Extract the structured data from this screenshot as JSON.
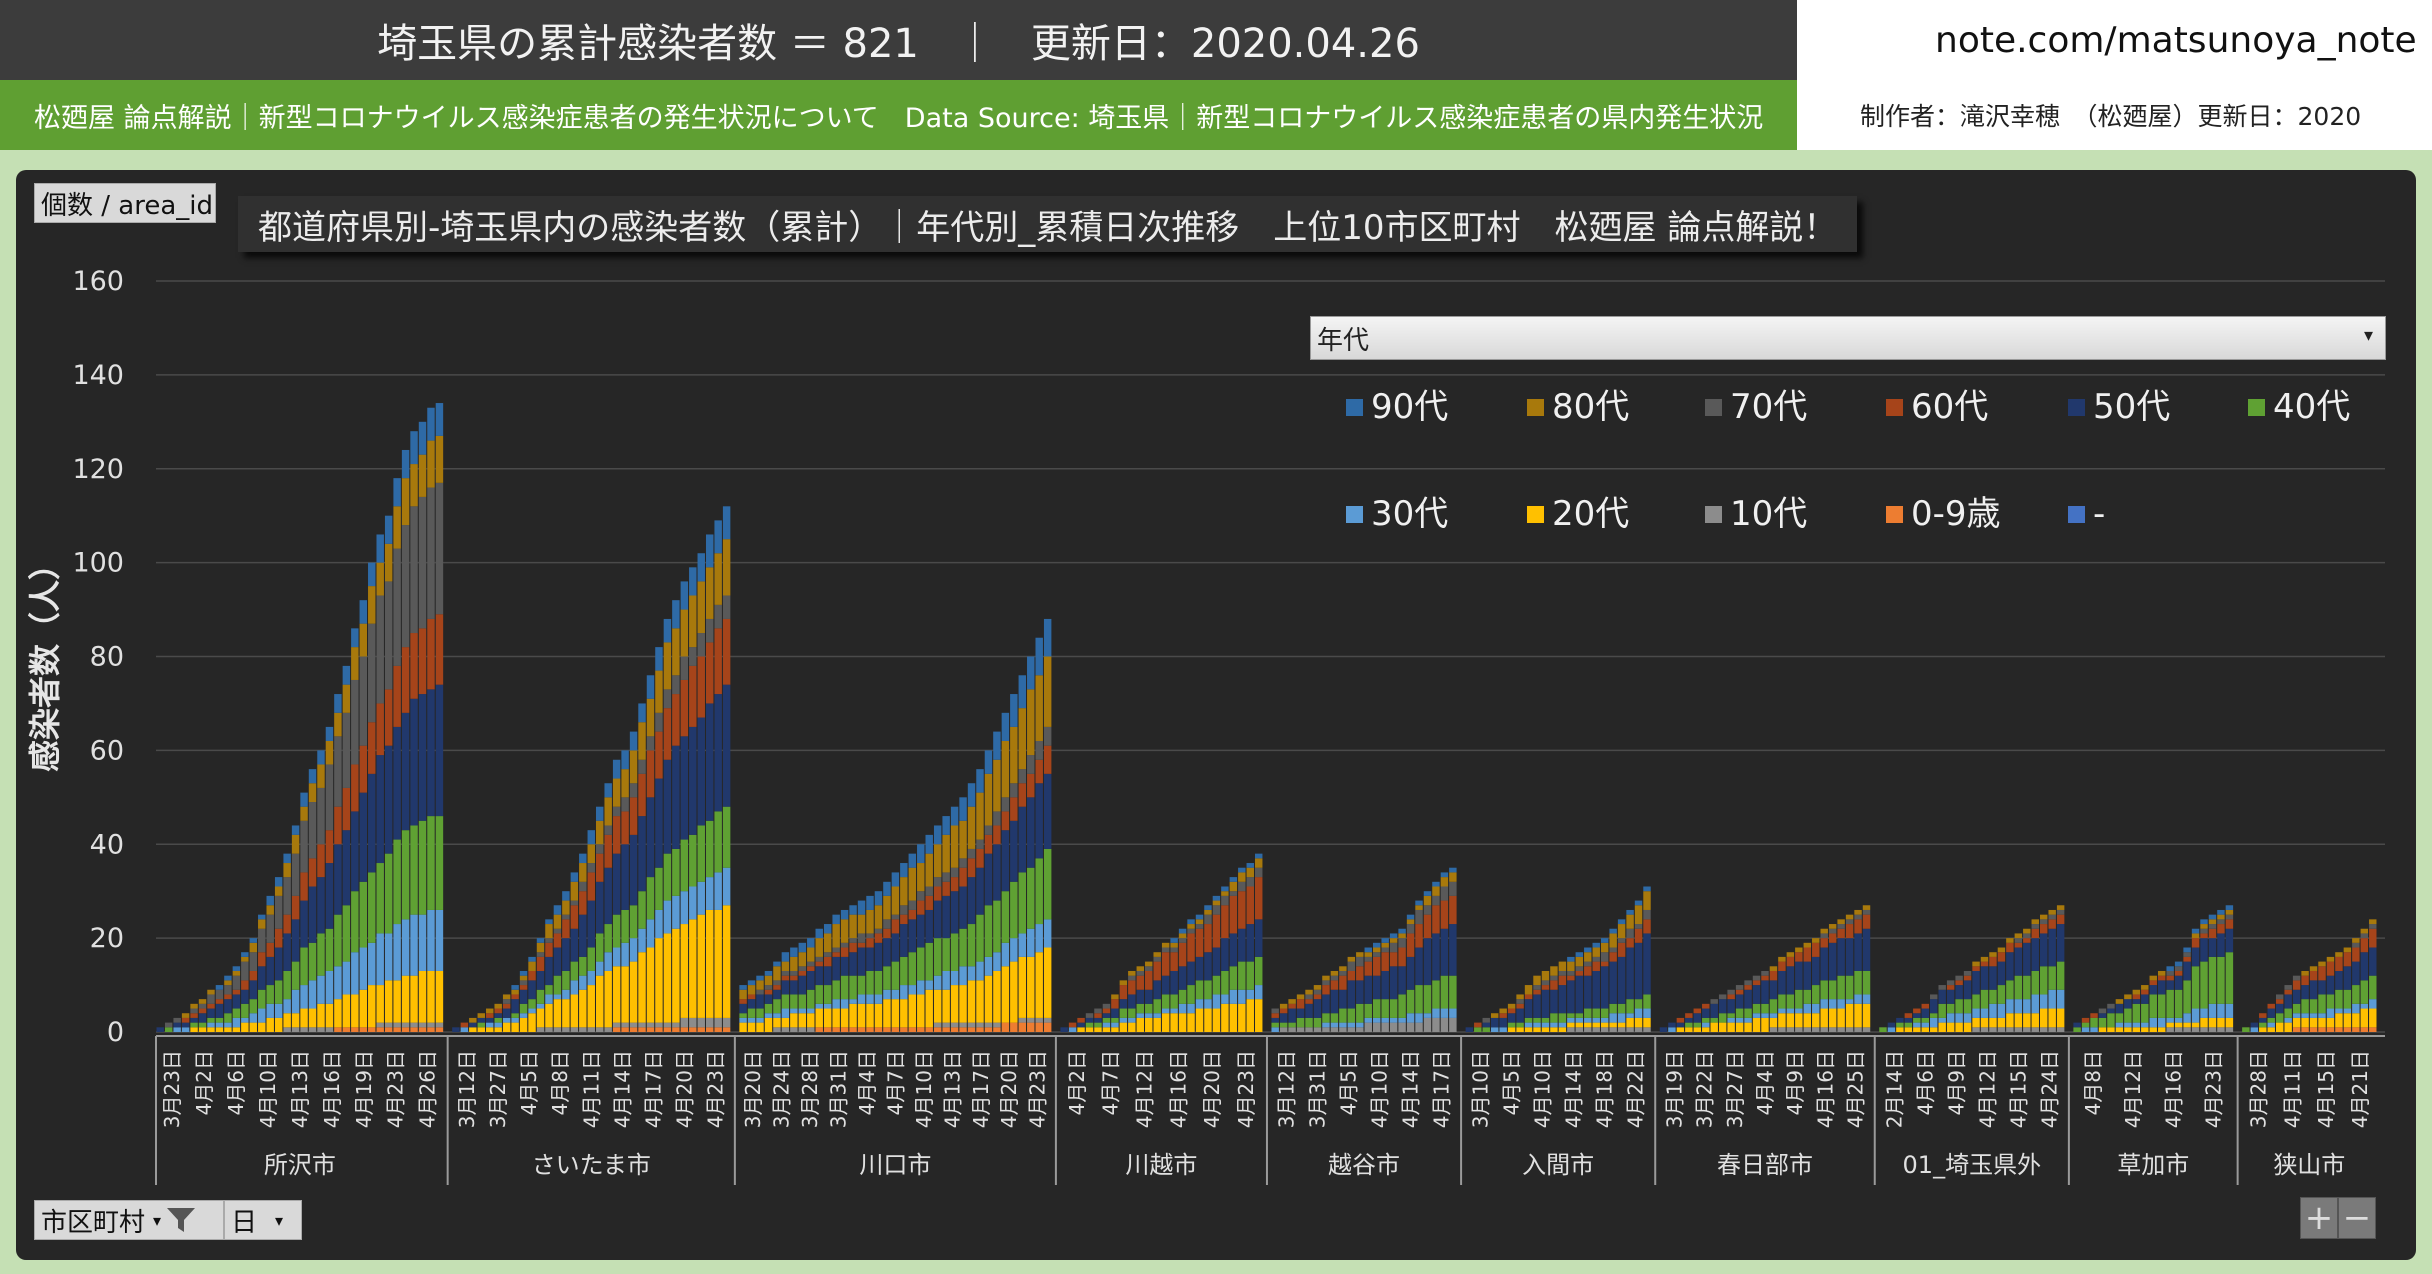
{
  "header": {
    "title": "埼玉県の累計感染者数 ＝ 821",
    "separator": "｜",
    "updated": "更新日：2020.04.26",
    "source_left": "松廼屋 論点解説｜新型コロナウイルス感染症患者の発生状況について",
    "source_right": "Data Source: 埼玉県｜新型コロナウイルス感染症患者の県内発生状況",
    "site": "note.com/matsunoya_note",
    "author": "制作者：滝沢幸穂　（松廼屋）更新日：2020"
  },
  "controls": {
    "value_field": "個数 / area_id",
    "row_field_1": "市区町村",
    "row_field_2": "日",
    "legend_field": "年代",
    "zoom_in": "+",
    "zoom_out": "−"
  },
  "colors": {
    "90代": "#2e6aa6",
    "80代": "#a8790c",
    "70代": "#595959",
    "60代": "#a6441a",
    "50代": "#21386c",
    "40代": "#5fa133",
    "30代": "#5b9bd5",
    "20代": "#ffc000",
    "10代": "#8c8c8c",
    "0-9歳": "#ed7d31",
    "-": "#4472c4"
  },
  "chart_data": {
    "type": "bar",
    "stacked": true,
    "title": "都道府県別-埼玉県内の感染者数（累計）｜年代別_累積日次推移　上位10市区町村　松廼屋 論点解説！",
    "ylabel": "感染者数（人）",
    "ylim": [
      0,
      160
    ],
    "yticks": [
      0,
      20,
      40,
      60,
      80,
      100,
      120,
      140,
      160
    ],
    "grid": true,
    "legend_position": "top-right",
    "series_order": [
      "-",
      "0-9歳",
      "10代",
      "20代",
      "30代",
      "40代",
      "50代",
      "60代",
      "70代",
      "80代",
      "90代"
    ],
    "legend_order": [
      "90代",
      "80代",
      "70代",
      "60代",
      "50代",
      "40代",
      "30代",
      "20代",
      "10代",
      "0-9歳",
      "-"
    ],
    "groups": [
      {
        "name": "所沢市",
        "date_labels": [
          "3月23日",
          "4月2日",
          "4月6日",
          "4月10日",
          "4月13日",
          "4月16日",
          "4月19日",
          "4月23日",
          "4月26日"
        ],
        "final": {
          "-": 0,
          "0-9歳": 1,
          "10代": 1,
          "20代": 11,
          "30代": 13,
          "40代": 20,
          "50代": 28,
          "60代": 15,
          "70代": 28,
          "80代": 10,
          "90代": 7
        },
        "totals": [
          1,
          2,
          3,
          4,
          6,
          7,
          9,
          10,
          12,
          14,
          17,
          20,
          25,
          29,
          33,
          38,
          44,
          51,
          56,
          60,
          65,
          72,
          78,
          86,
          92,
          100,
          106,
          110,
          118,
          124,
          128,
          130,
          133,
          134
        ]
      },
      {
        "name": "さいたま市",
        "date_labels": [
          "3月12日",
          "3月27日",
          "4月5日",
          "4月8日",
          "4月11日",
          "4月14日",
          "4月17日",
          "4月20日",
          "4月23日"
        ],
        "final": {
          "-": 0,
          "0-9歳": 1,
          "10代": 2,
          "20代": 24,
          "30代": 8,
          "40代": 13,
          "50代": 26,
          "60代": 14,
          "70代": 5,
          "80代": 12,
          "90代": 7
        },
        "totals": [
          1,
          2,
          3,
          4,
          5,
          6,
          8,
          10,
          13,
          16,
          20,
          24,
          27,
          30,
          34,
          38,
          43,
          48,
          53,
          58,
          60,
          64,
          70,
          76,
          82,
          88,
          92,
          96,
          99,
          102,
          106,
          109,
          112
        ]
      },
      {
        "name": "川口市",
        "date_labels": [
          "3月20日",
          "3月24日",
          "3月28日",
          "3月31日",
          "4月4日",
          "4月7日",
          "4月10日",
          "4月13日",
          "4月17日",
          "4月20日",
          "4月23日"
        ],
        "final": {
          "-": 0,
          "0-9歳": 2,
          "10代": 1,
          "20代": 15,
          "30代": 6,
          "40代": 15,
          "50代": 16,
          "60代": 6,
          "70代": 4,
          "80代": 15,
          "90代": 8
        },
        "totals": [
          10,
          11,
          12,
          13,
          15,
          17,
          18,
          19,
          20,
          22,
          23,
          25,
          26,
          27,
          28,
          29,
          30,
          32,
          34,
          36,
          38,
          40,
          42,
          44,
          46,
          48,
          50,
          53,
          56,
          60,
          64,
          68,
          72,
          76,
          80,
          84,
          88
        ]
      },
      {
        "name": "川越市",
        "date_labels": [
          "4月2日",
          "4月7日",
          "4月12日",
          "4月16日",
          "4月20日",
          "4月23日"
        ],
        "final": {
          "-": 0,
          "0-9歳": 0,
          "10代": 0,
          "20代": 7,
          "30代": 3,
          "40代": 6,
          "50代": 8,
          "60代": 9,
          "70代": 2,
          "80代": 2,
          "90代": 1
        },
        "totals": [
          1,
          2,
          3,
          4,
          5,
          6,
          8,
          11,
          13,
          14,
          15,
          17,
          19,
          20,
          22,
          24,
          25,
          27,
          29,
          31,
          33,
          35,
          36,
          38
        ]
      },
      {
        "name": "越谷市",
        "date_labels": [
          "3月12日",
          "3月31日",
          "4月5日",
          "4月10日",
          "4月14日",
          "4月17日"
        ],
        "final": {
          "-": 0,
          "0-9歳": 0,
          "10代": 3,
          "20代": 0,
          "30代": 2,
          "40代": 7,
          "50代": 11,
          "60代": 6,
          "70代": 3,
          "80代": 2,
          "90代": 1
        },
        "totals": [
          5,
          6,
          7,
          8,
          9,
          10,
          12,
          13,
          14,
          16,
          17,
          18,
          19,
          20,
          21,
          22,
          25,
          28,
          30,
          32,
          34,
          35
        ]
      },
      {
        "name": "入間市",
        "date_labels": [
          "3月10日",
          "4月5日",
          "4月10日",
          "4月14日",
          "4月18日",
          "4月22日"
        ],
        "final": {
          "-": 0,
          "0-9歳": 0,
          "10代": 1,
          "20代": 2,
          "30代": 2,
          "40代": 3,
          "50代": 13,
          "60代": 3,
          "70代": 2,
          "80代": 4,
          "90代": 1
        },
        "totals": [
          1,
          2,
          3,
          4,
          5,
          6,
          8,
          10,
          12,
          13,
          14,
          15,
          16,
          17,
          18,
          19,
          20,
          22,
          24,
          26,
          28,
          31
        ]
      },
      {
        "name": "春日部市",
        "date_labels": [
          "3月19日",
          "3月22日",
          "3月27日",
          "4月4日",
          "4月9日",
          "4月16日",
          "4月25日"
        ],
        "final": {
          "-": 0,
          "0-9歳": 0,
          "10代": 1,
          "20代": 5,
          "30代": 2,
          "40代": 5,
          "50代": 9,
          "60代": 3,
          "70代": 1,
          "80代": 1,
          "90代": 0
        },
        "totals": [
          1,
          2,
          3,
          4,
          5,
          6,
          7,
          8,
          9,
          10,
          11,
          12,
          13,
          14,
          16,
          17,
          18,
          19,
          20,
          22,
          23,
          24,
          25,
          26,
          27
        ]
      },
      {
        "name": "01_埼玉県外",
        "date_labels": [
          "2月14日",
          "4月6日",
          "4月9日",
          "4月12日",
          "4月15日",
          "4月24日"
        ],
        "final": {
          "-": 0,
          "0-9歳": 0,
          "10代": 1,
          "20代": 4,
          "30代": 4,
          "40代": 6,
          "50代": 8,
          "60代": 2,
          "70代": 1,
          "80代": 1,
          "90代": 0
        },
        "totals": [
          1,
          2,
          3,
          4,
          5,
          6,
          8,
          10,
          11,
          12,
          13,
          15,
          16,
          17,
          18,
          20,
          21,
          22,
          24,
          25,
          26,
          27
        ]
      },
      {
        "name": "草加市",
        "date_labels": [
          "4月8日",
          "4月12日",
          "4月16日",
          "4月23日"
        ],
        "final": {
          "-": 0,
          "0-9歳": 0,
          "10代": 1,
          "20代": 2,
          "30代": 3,
          "40代": 11,
          "50代": 5,
          "60代": 2,
          "70代": 1,
          "80代": 1,
          "90代": 1
        },
        "totals": [
          2,
          3,
          4,
          5,
          6,
          7,
          8,
          9,
          10,
          12,
          13,
          14,
          15,
          18,
          22,
          24,
          25,
          26,
          27
        ]
      },
      {
        "name": "狭山市",
        "date_labels": [
          "3月28日",
          "4月11日",
          "4月15日",
          "4月21日"
        ],
        "final": {
          "-": 0,
          "0-9歳": 1,
          "10代": 0,
          "20代": 4,
          "30代": 2,
          "40代": 5,
          "50代": 6,
          "60代": 4,
          "70代": 1,
          "80代": 1,
          "90代": 0
        },
        "totals": [
          1,
          2,
          4,
          6,
          8,
          10,
          12,
          13,
          14,
          15,
          16,
          17,
          18,
          20,
          22,
          24
        ]
      }
    ]
  }
}
